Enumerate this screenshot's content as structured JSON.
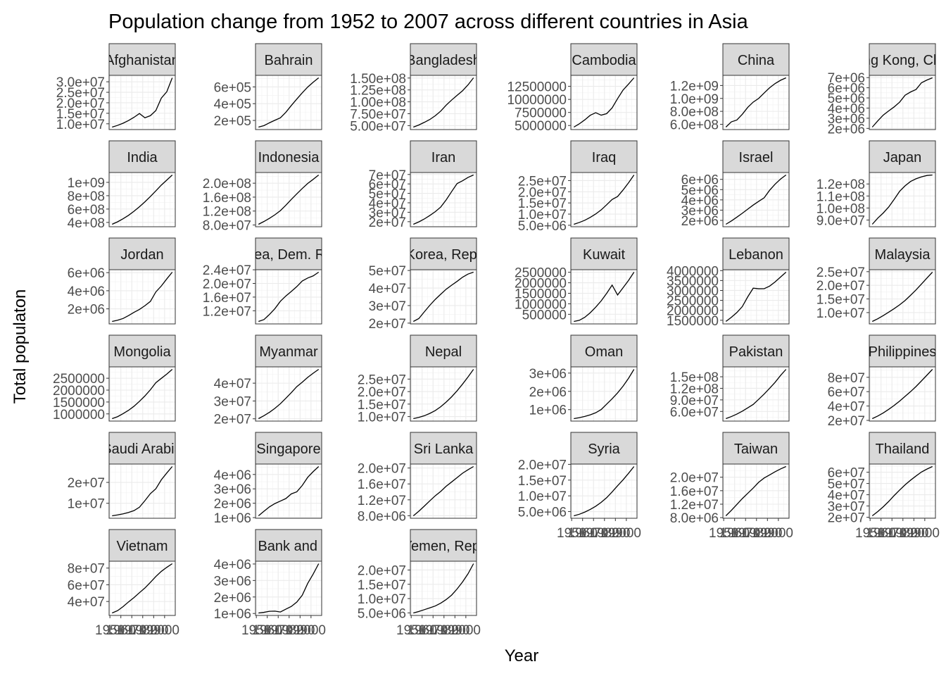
{
  "chart_data": {
    "type": "line",
    "title": "Population change from 1952 to 2007 across different countries in Asia",
    "xlabel": "Year",
    "ylabel": "Total populaton",
    "x": [
      1952,
      1957,
      1962,
      1967,
      1972,
      1977,
      1982,
      1987,
      1992,
      1997,
      2002,
      2007
    ],
    "x_tick_labels": [
      "1950",
      "1960",
      "1970",
      "1980",
      "1990",
      "2000"
    ],
    "facets": "wrap by country, 6 columns, fixed x and free y scales",
    "grid": true,
    "series": [
      {
        "name": "Afghanistan",
        "values": [
          8425333,
          9240934,
          10267083,
          11537966,
          13079460,
          14880372,
          12881816,
          13867957,
          16317921,
          22227415,
          25268405,
          31889923
        ],
        "yticks": [
          10000000,
          15000000,
          20000000,
          25000000,
          30000000
        ],
        "ytick_labels": [
          "1.0e+07",
          "1.5e+07",
          "2.0e+07",
          "2.5e+07",
          "3.0e+07"
        ]
      },
      {
        "name": "Bahrain",
        "values": [
          120447,
          138655,
          171863,
          202182,
          230800,
          297410,
          377967,
          454612,
          529491,
          598561,
          656397,
          708573
        ],
        "yticks": [
          200000,
          400000,
          600000
        ],
        "ytick_labels": [
          "2e+05",
          "4e+05",
          "6e+05"
        ]
      },
      {
        "name": "Bangladesh",
        "values": [
          46886859,
          51365468,
          56839289,
          62821884,
          70759295,
          80428306,
          93074406,
          103764241,
          113704579,
          123315288,
          135656790,
          150448339
        ],
        "yticks": [
          50000000,
          75000000,
          100000000,
          125000000,
          150000000
        ],
        "ytick_labels": [
          "5.00e+07",
          "7.50e+07",
          "1.00e+08",
          "1.25e+08",
          "1.50e+08"
        ]
      },
      {
        "name": "Cambodia",
        "values": [
          4693836,
          5322536,
          6083619,
          6960067,
          7450606,
          6978607,
          7272485,
          8371791,
          10150094,
          11782962,
          12926707,
          14131858
        ],
        "yticks": [
          5000000,
          7500000,
          10000000,
          12500000
        ],
        "ytick_labels": [
          "5000000",
          "7500000",
          "10000000",
          "12500000"
        ]
      },
      {
        "name": "China",
        "values": [
          556263527,
          637408000,
          665770000,
          754550000,
          862030000,
          943455000,
          1000281000,
          1084035000,
          1164970000,
          1230075000,
          1280400000,
          1318683096
        ],
        "yticks": [
          600000000,
          800000000,
          1000000000,
          1200000000
        ],
        "ytick_labels": [
          "6.0e+08",
          "8.0e+08",
          "1.0e+09",
          "1.2e+09"
        ]
      },
      {
        "name": "Hong Kong, China",
        "values": [
          2125900,
          2736300,
          3305200,
          3722800,
          4115700,
          4583700,
          5264500,
          5584510,
          5829696,
          6495918,
          6762476,
          6980412
        ],
        "yticks": [
          2000000,
          3000000,
          4000000,
          5000000,
          6000000,
          7000000
        ],
        "ytick_labels": [
          "2e+06",
          "3e+06",
          "4e+06",
          "5e+06",
          "6e+06",
          "7e+06"
        ]
      },
      {
        "name": "India",
        "values": [
          372000000,
          409000000,
          454000000,
          506000000,
          567000000,
          634000000,
          708000000,
          788000000,
          872000000,
          959000000,
          1034172547,
          1110396331
        ],
        "yticks": [
          400000000,
          600000000,
          800000000,
          1000000000
        ],
        "ytick_labels": [
          "4e+08",
          "6e+08",
          "8e+08",
          "1e+09"
        ]
      },
      {
        "name": "Indonesia",
        "values": [
          82052000,
          90124000,
          99028000,
          109343000,
          121282000,
          136725000,
          153343000,
          169276000,
          184816000,
          199278000,
          211060000,
          223547000
        ],
        "yticks": [
          80000000,
          120000000,
          160000000,
          200000000
        ],
        "ytick_labels": [
          "8.0e+07",
          "1.2e+08",
          "1.6e+08",
          "2.0e+08"
        ]
      },
      {
        "name": "Iran",
        "values": [
          17272000,
          19792000,
          22874000,
          26538000,
          30614000,
          35480679,
          43072751,
          51889696,
          60397973,
          63327987,
          66907826,
          69453570
        ],
        "yticks": [
          20000000,
          30000000,
          40000000,
          50000000,
          60000000,
          70000000
        ],
        "ytick_labels": [
          "2e+07",
          "3e+07",
          "4e+07",
          "5e+07",
          "6e+07",
          "7e+07"
        ]
      },
      {
        "name": "Iraq",
        "values": [
          5441766,
          6248643,
          7240260,
          8519282,
          10061506,
          11882916,
          14173318,
          16543189,
          17861905,
          20775703,
          24001816,
          27499638
        ],
        "yticks": [
          5000000,
          10000000,
          15000000,
          20000000,
          25000000
        ],
        "ytick_labels": [
          "5.0e+06",
          "1.0e+07",
          "1.5e+07",
          "2.0e+07",
          "2.5e+07"
        ]
      },
      {
        "name": "Israel",
        "values": [
          1620914,
          1944401,
          2310904,
          2693585,
          3095893,
          3495918,
          3858421,
          4203148,
          4936550,
          5531387,
          6029529,
          6426679
        ],
        "yticks": [
          2000000,
          3000000,
          4000000,
          5000000,
          6000000
        ],
        "ytick_labels": [
          "2e+06",
          "3e+06",
          "4e+06",
          "5e+06",
          "6e+06"
        ]
      },
      {
        "name": "Japan",
        "values": [
          86459025,
          91563009,
          95831757,
          100825279,
          107188273,
          113872473,
          118454974,
          122091325,
          124329269,
          125956499,
          127065841,
          127467972
        ],
        "yticks": [
          90000000,
          100000000,
          110000000,
          120000000
        ],
        "ytick_labels": [
          "9.0e+07",
          "1.0e+08",
          "1.1e+08",
          "1.2e+08"
        ]
      },
      {
        "name": "Jordan",
        "values": [
          607914,
          746559,
          933559,
          1255058,
          1613551,
          1937652,
          2347031,
          2820042,
          3867409,
          4526235,
          5307470,
          6053193
        ],
        "yticks": [
          2000000,
          4000000,
          6000000
        ],
        "ytick_labels": [
          "2e+06",
          "4e+06",
          "6e+06"
        ]
      },
      {
        "name": "Korea, Dem. Rep.",
        "values": [
          8865488,
          9411381,
          10917494,
          12617009,
          14781241,
          16325320,
          17647518,
          19067554,
          20711375,
          21585105,
          22215365,
          23301725
        ],
        "yticks": [
          12000000,
          16000000,
          20000000,
          24000000
        ],
        "ytick_labels": [
          "1.2e+07",
          "1.6e+07",
          "2.0e+07",
          "2.4e+07"
        ]
      },
      {
        "name": "Korea, Rep.",
        "values": [
          20947571,
          22611552,
          26420307,
          30131000,
          33505000,
          36436000,
          39326000,
          41622000,
          43805450,
          46173816,
          47969150,
          49044790
        ],
        "yticks": [
          20000000,
          30000000,
          40000000,
          50000000
        ],
        "ytick_labels": [
          "2e+07",
          "3e+07",
          "4e+07",
          "5e+07"
        ]
      },
      {
        "name": "Kuwait",
        "values": [
          160000,
          212846,
          358266,
          575003,
          841934,
          1140357,
          1497494,
          1891487,
          1418095,
          1765345,
          2111561,
          2505559
        ],
        "yticks": [
          500000,
          1000000,
          1500000,
          2000000,
          2500000
        ],
        "ytick_labels": [
          "500000",
          "1000000",
          "1500000",
          "2000000",
          "2500000"
        ]
      },
      {
        "name": "Lebanon",
        "values": [
          1439529,
          1647412,
          1886848,
          2186894,
          2680018,
          3115787,
          3086876,
          3089353,
          3219994,
          3430388,
          3677780,
          3921278
        ],
        "yticks": [
          1500000,
          2000000,
          2500000,
          3000000,
          3500000,
          4000000
        ],
        "ytick_labels": [
          "1500000",
          "2000000",
          "2500000",
          "3000000",
          "3500000",
          "4000000"
        ]
      },
      {
        "name": "Malaysia",
        "values": [
          6748378,
          7739235,
          8906385,
          10154878,
          11441462,
          12845381,
          14441916,
          16331785,
          18319502,
          20476091,
          22662365,
          24821286
        ],
        "yticks": [
          10000000,
          15000000,
          20000000,
          25000000
        ],
        "ytick_labels": [
          "1.0e+07",
          "1.5e+07",
          "2.0e+07",
          "2.5e+07"
        ]
      },
      {
        "name": "Mongolia",
        "values": [
          800663,
          882134,
          1010280,
          1149500,
          1320500,
          1528000,
          1756032,
          2015133,
          2312802,
          2494803,
          2674234,
          2874127
        ],
        "yticks": [
          1000000,
          1500000,
          2000000,
          2500000
        ],
        "ytick_labels": [
          "1000000",
          "1500000",
          "2000000",
          "2500000"
        ]
      },
      {
        "name": "Myanmar",
        "values": [
          20092996,
          21731844,
          23634436,
          25870271,
          28466390,
          31528087,
          34680442,
          38028578,
          40546538,
          43247867,
          45598081,
          47761980
        ],
        "yticks": [
          20000000,
          30000000,
          40000000
        ],
        "ytick_labels": [
          "2e+07",
          "3e+07",
          "4e+07"
        ]
      },
      {
        "name": "Nepal",
        "values": [
          9182536,
          9682338,
          10332057,
          11261690,
          12412593,
          13933198,
          15796314,
          17917180,
          20326209,
          23001113,
          25873917,
          28901790
        ],
        "yticks": [
          10000000,
          15000000,
          20000000,
          25000000
        ],
        "ytick_labels": [
          "1.0e+07",
          "1.5e+07",
          "2.0e+07",
          "2.5e+07"
        ]
      },
      {
        "name": "Oman",
        "values": [
          507833,
          561977,
          628164,
          714775,
          829050,
          1004533,
          1301048,
          1593882,
          1915208,
          2283635,
          2713462,
          3204897
        ],
        "yticks": [
          1000000,
          2000000,
          3000000
        ],
        "ytick_labels": [
          "1e+06",
          "2e+06",
          "3e+06"
        ]
      },
      {
        "name": "Pakistan",
        "values": [
          41346560,
          46679944,
          53100671,
          60641899,
          69325921,
          78152686,
          91462088,
          105186881,
          120065004,
          135564834,
          153403524,
          169270617
        ],
        "yticks": [
          60000000,
          90000000,
          120000000,
          150000000
        ],
        "ytick_labels": [
          "6.0e+07",
          "9.0e+07",
          "1.2e+08",
          "1.5e+08"
        ]
      },
      {
        "name": "Philippines",
        "values": [
          22438691,
          26072194,
          30325264,
          35356600,
          40850141,
          46850962,
          53456774,
          60017788,
          67185766,
          75012988,
          82995088,
          91077287
        ],
        "yticks": [
          20000000,
          40000000,
          60000000,
          80000000
        ],
        "ytick_labels": [
          "2e+07",
          "4e+07",
          "6e+07",
          "8e+07"
        ]
      },
      {
        "name": "Saudi Arabia",
        "values": [
          4005677,
          4419650,
          4943029,
          5618198,
          6472756,
          8128505,
          11254672,
          14619745,
          16945857,
          21229759,
          24501530,
          27601038
        ],
        "yticks": [
          10000000,
          20000000
        ],
        "ytick_labels": [
          "1e+07",
          "2e+07"
        ]
      },
      {
        "name": "Singapore",
        "values": [
          1127000,
          1445929,
          1750200,
          1977600,
          2152400,
          2325300,
          2651869,
          2794552,
          3235865,
          3802309,
          4197776,
          4553009
        ],
        "yticks": [
          1000000,
          2000000,
          3000000,
          4000000
        ],
        "ytick_labels": [
          "1e+06",
          "2e+06",
          "3e+06",
          "4e+06"
        ]
      },
      {
        "name": "Sri Lanka",
        "values": [
          7982342,
          9128546,
          10421936,
          11737396,
          13016733,
          14116836,
          15410151,
          16495304,
          17587060,
          18698655,
          19576783,
          20378239
        ],
        "yticks": [
          8000000,
          12000000,
          16000000,
          20000000
        ],
        "ytick_labels": [
          "8.0e+06",
          "1.2e+07",
          "1.6e+07",
          "2.0e+07"
        ]
      },
      {
        "name": "Syria",
        "values": [
          3661549,
          4149908,
          4834621,
          5680812,
          6701172,
          7932503,
          9410494,
          11242847,
          13219062,
          15081016,
          17155814,
          19314747
        ],
        "yticks": [
          5000000,
          10000000,
          15000000,
          20000000
        ],
        "ytick_labels": [
          "5.0e+06",
          "1.0e+07",
          "1.5e+07",
          "2.0e+07"
        ]
      },
      {
        "name": "Taiwan",
        "values": [
          8550362,
          10164215,
          11918938,
          13648692,
          15226039,
          16785196,
          18501390,
          19757799,
          20686918,
          21628605,
          22454239,
          23174294
        ],
        "yticks": [
          8000000,
          12000000,
          16000000,
          20000000
        ],
        "ytick_labels": [
          "8.0e+06",
          "1.2e+07",
          "1.6e+07",
          "2.0e+07"
        ]
      },
      {
        "name": "Thailand",
        "values": [
          21289402,
          25041917,
          29263397,
          34024249,
          39276153,
          44148285,
          48827160,
          52910342,
          56667095,
          60216677,
          62806748,
          65068149
        ],
        "yticks": [
          20000000,
          30000000,
          40000000,
          50000000,
          60000000
        ],
        "ytick_labels": [
          "2e+07",
          "3e+07",
          "4e+07",
          "5e+07",
          "6e+07"
        ]
      },
      {
        "name": "Vietnam",
        "values": [
          26246839,
          28998543,
          33796140,
          39463910,
          44655014,
          50533506,
          56142181,
          62826491,
          69940728,
          76048996,
          80908147,
          85262356
        ],
        "yticks": [
          40000000,
          60000000,
          80000000
        ],
        "ytick_labels": [
          "4e+07",
          "6e+07",
          "8e+07"
        ]
      },
      {
        "name": "West Bank and Gaza",
        "values": [
          1030585,
          1070439,
          1133134,
          1142636,
          1089572,
          1261091,
          1425876,
          1691210,
          2104779,
          2826046,
          3389578,
          4018332
        ],
        "yticks": [
          1000000,
          2000000,
          3000000,
          4000000
        ],
        "ytick_labels": [
          "1e+06",
          "2e+06",
          "3e+06",
          "4e+06"
        ]
      },
      {
        "name": "Yemen, Rep.",
        "values": [
          4963829,
          5498090,
          6120081,
          6740785,
          7407075,
          8403990,
          9657618,
          11219340,
          13367997,
          15826497,
          18701257,
          22211743
        ],
        "yticks": [
          5000000,
          10000000,
          15000000,
          20000000
        ],
        "ytick_labels": [
          "5.0e+06",
          "1.0e+07",
          "1.5e+07",
          "2.0e+07"
        ]
      }
    ]
  }
}
